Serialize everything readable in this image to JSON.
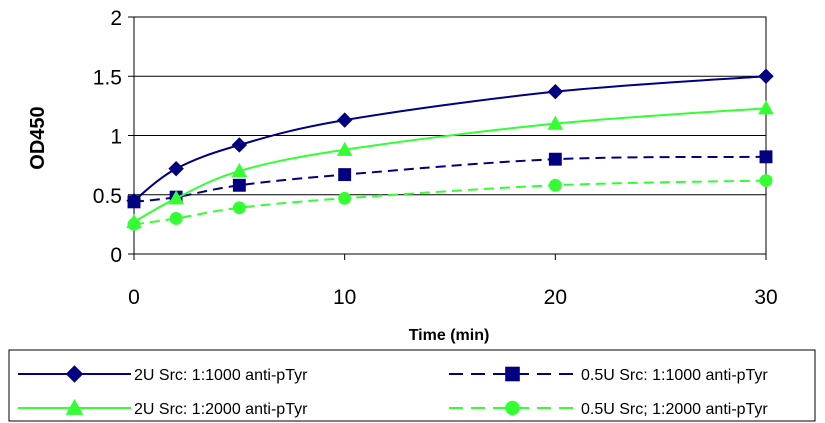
{
  "chart_data": {
    "type": "line",
    "xlabel": "Time (min)",
    "ylabel": "OD450",
    "xlim": [
      0,
      30
    ],
    "ylim": [
      0,
      2
    ],
    "x_ticks": [
      "0",
      "10",
      "20",
      "30"
    ],
    "y_ticks": [
      "0",
      "0.5",
      "1",
      "1.5",
      "2"
    ],
    "grid": "horizontal",
    "legend_position": "bottom",
    "x": [
      0,
      2,
      5,
      10,
      20,
      30
    ],
    "series": [
      {
        "name": "2U Src: 1:1000 anti-pTyr",
        "values": [
          0.45,
          0.72,
          0.92,
          1.13,
          1.37,
          1.5
        ],
        "color": "#000080",
        "marker": "diamond",
        "dash": "solid"
      },
      {
        "name": "0.5U Src: 1:1000 anti-pTyr",
        "values": [
          0.44,
          0.48,
          0.58,
          0.67,
          0.8,
          0.82
        ],
        "color": "#000080",
        "marker": "square",
        "dash": "dashed"
      },
      {
        "name": "2U Src: 1:2000 anti-pTyr",
        "values": [
          0.27,
          0.47,
          0.7,
          0.88,
          1.1,
          1.23
        ],
        "color": "#33ff33",
        "marker": "triangle",
        "dash": "solid"
      },
      {
        "name": "0.5U Src; 1:2000 anti-pTyr",
        "values": [
          0.25,
          0.3,
          0.39,
          0.47,
          0.58,
          0.62
        ],
        "color": "#33ff33",
        "marker": "circle",
        "dash": "dashed"
      }
    ]
  }
}
